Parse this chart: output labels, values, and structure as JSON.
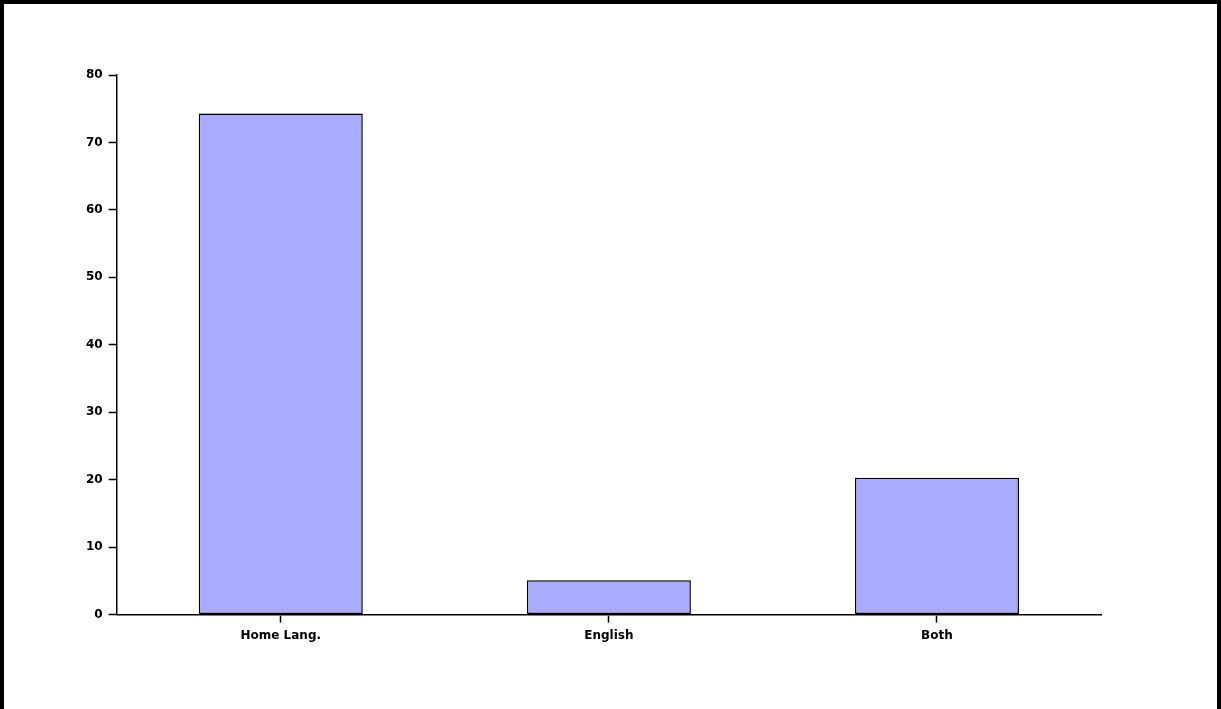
{
  "chart_data": {
    "type": "bar",
    "categories": [
      "Home Lang.",
      "English",
      "Both"
    ],
    "values": [
      74.3,
      5.1,
      20.3
    ],
    "color": "#aaaaff",
    "ylim": [
      0,
      80
    ],
    "yticks": [
      0,
      10,
      20,
      30,
      40,
      50,
      60,
      70,
      80
    ],
    "grid": false,
    "legend": false
  }
}
